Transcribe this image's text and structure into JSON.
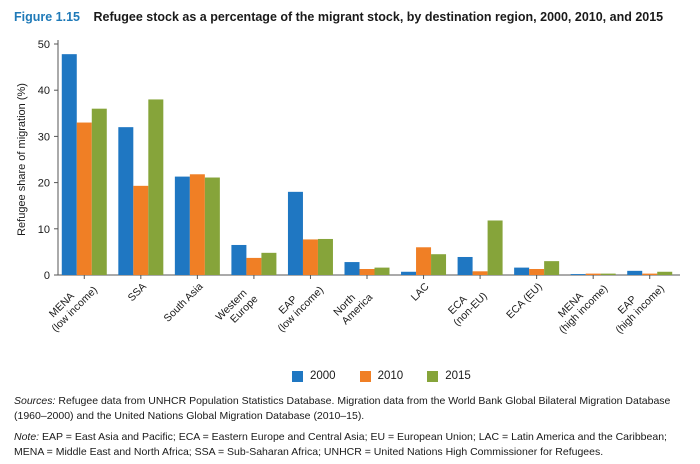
{
  "figure": {
    "label": "Figure 1.15",
    "title": "Refugee stock as a percentage of the migrant stock, by destination region, 2000, 2010, and 2015"
  },
  "chart_data": {
    "type": "bar",
    "ylabel": "Refugee share of migration (%)",
    "xlabel": "",
    "ylim": [
      0,
      50
    ],
    "yticks": [
      0,
      10,
      20,
      30,
      40,
      50
    ],
    "grid": false,
    "legend_position": "bottom",
    "categories": [
      [
        "MENA",
        "(low income)"
      ],
      [
        "SSA"
      ],
      [
        "South Asia"
      ],
      [
        "Western",
        "Europe"
      ],
      [
        "EAP",
        "(low income)"
      ],
      [
        "North",
        "America"
      ],
      [
        "LAC"
      ],
      [
        "ECA",
        "(non-EU)"
      ],
      [
        "ECA (EU)"
      ],
      [
        "MENA",
        "(high income)"
      ],
      [
        "EAP",
        "(high income)"
      ]
    ],
    "series": [
      {
        "name": "2000",
        "color": "#1f77c2",
        "values": [
          47.8,
          32.0,
          21.3,
          6.5,
          18.0,
          2.8,
          0.7,
          3.9,
          1.6,
          0.2,
          0.9
        ]
      },
      {
        "name": "2010",
        "color": "#f07f25",
        "values": [
          33.0,
          19.3,
          21.8,
          3.7,
          7.7,
          1.3,
          6.0,
          0.8,
          1.3,
          0.3,
          0.3
        ]
      },
      {
        "name": "2015",
        "color": "#86a43a",
        "values": [
          36.0,
          38.0,
          21.1,
          4.8,
          7.8,
          1.6,
          4.5,
          11.8,
          3.0,
          0.3,
          0.7
        ]
      }
    ]
  },
  "sources": {
    "label": "Sources:",
    "text": " Refugee data from UNHCR Population Statistics Database. Migration data from the World Bank Global Bilateral Migration Database (1960–2000) and the United Nations Global Migration Database (2010–15)."
  },
  "note": {
    "label": "Note:",
    "text": " EAP = East Asia and Pacific; ECA = Eastern Europe and Central Asia; EU = European Union; LAC = Latin America and the Caribbean; MENA = Middle East and North Africa; SSA = Sub-Saharan Africa; UNHCR = United Nations High Commissioner for Refugees."
  }
}
